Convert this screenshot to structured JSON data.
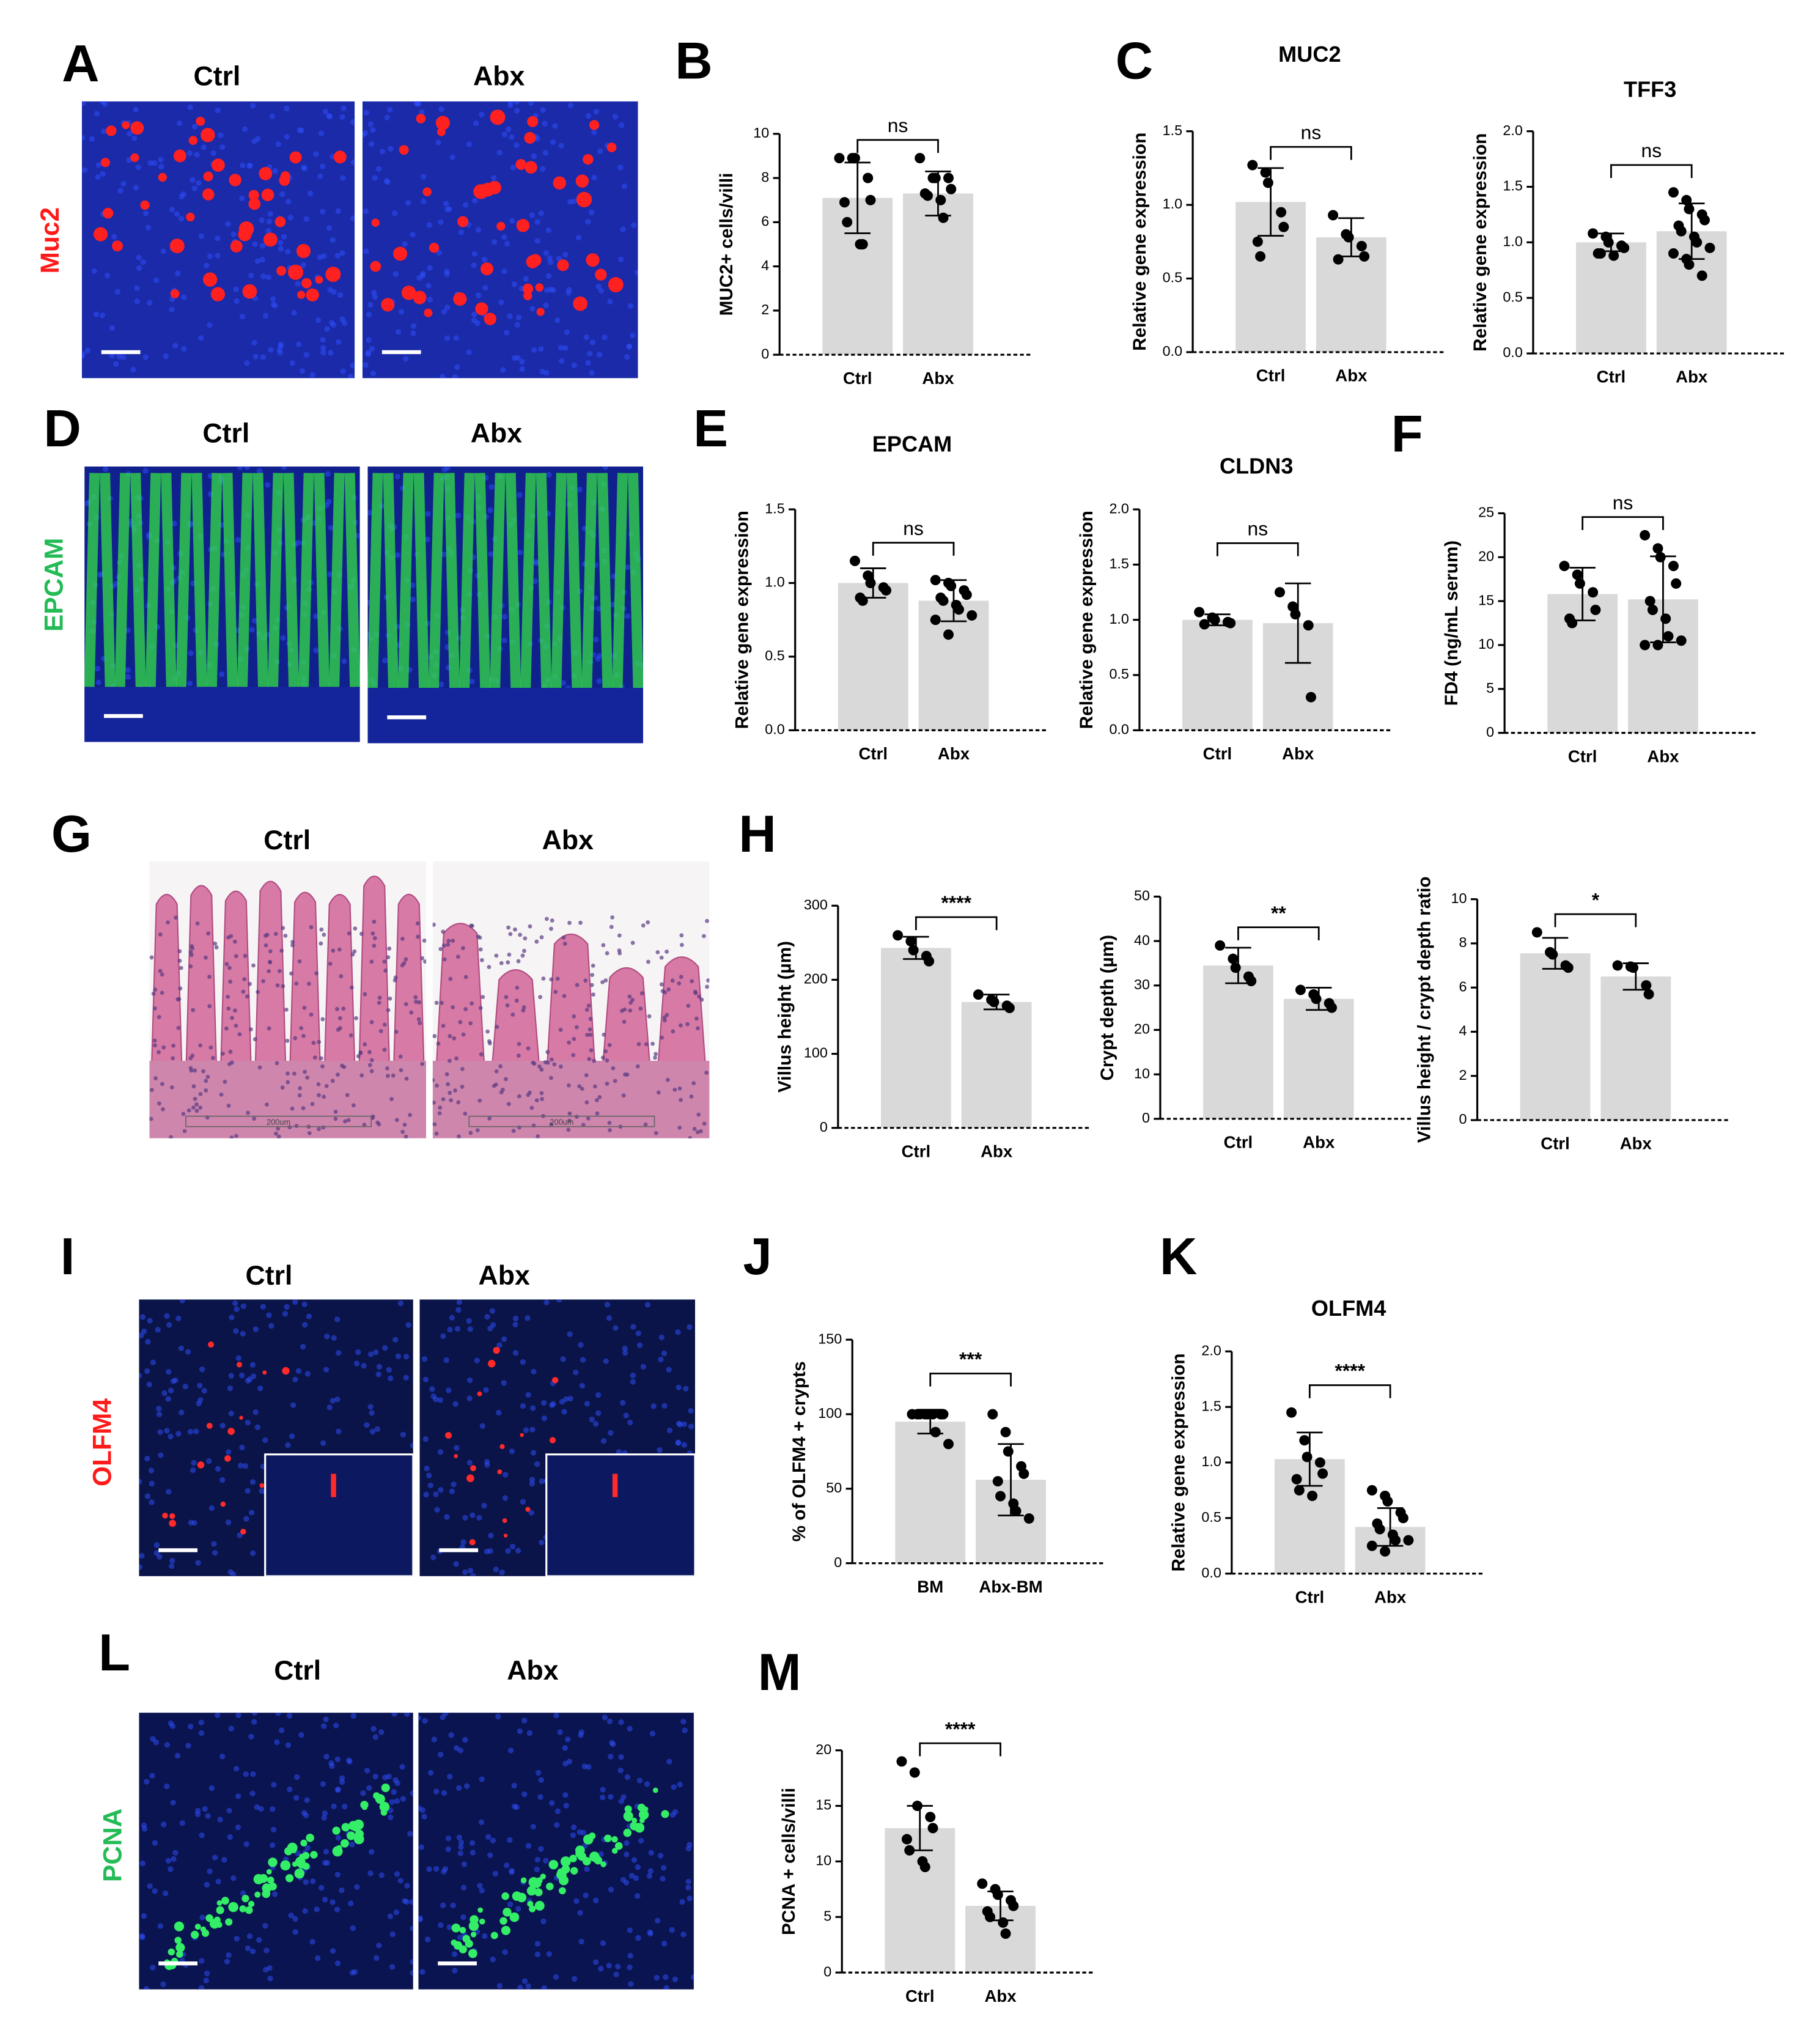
{
  "image_panels": [
    {
      "letter": "A",
      "stain": "Muc2",
      "columns": [
        "Ctrl",
        "Abx"
      ]
    },
    {
      "letter": "D",
      "stain": "EPCAM",
      "columns": [
        "Ctrl",
        "Abx"
      ]
    },
    {
      "letter": "G",
      "columns": [
        "Ctrl",
        "Abx"
      ],
      "scale_labels": [
        "200um",
        "200um"
      ]
    },
    {
      "letter": "I",
      "stain": "OLFM4",
      "columns": [
        "Ctrl",
        "Abx"
      ]
    },
    {
      "letter": "L",
      "stain": "PCNA",
      "columns": [
        "Ctrl",
        "Abx"
      ]
    }
  ],
  "chart_letters": [
    "B",
    "C",
    "E",
    "F",
    "H",
    "J",
    "K",
    "M"
  ],
  "chart_data": [
    {
      "type": "bar",
      "ylabel": "MUC2+ cells/villi",
      "categories": [
        "Ctrl",
        "Abx"
      ],
      "values": [
        7.1,
        7.3
      ],
      "error": [
        1.6,
        1.0
      ],
      "points": [
        [
          8.9,
          8.9,
          8.9,
          8,
          7,
          6.9,
          6,
          5,
          5
        ],
        [
          8.9,
          8,
          8,
          8,
          7.5,
          7.3,
          7.2,
          7,
          6.2
        ]
      ],
      "significance": "ns",
      "ylim": [
        0,
        10
      ],
      "yticks": [
        0,
        2,
        4,
        6,
        8,
        10
      ],
      "color": "#d9d9d9"
    },
    {
      "type": "bar",
      "title": "MUC2",
      "ylabel": "Relative gene expression",
      "categories": [
        "Ctrl",
        "Abx"
      ],
      "values": [
        1.02,
        0.78
      ],
      "error": [
        0.23,
        0.13
      ],
      "points": [
        [
          1.27,
          1.22,
          1.15,
          0.95,
          0.85,
          0.75,
          0.65
        ],
        [
          0.93,
          0.8,
          0.78,
          0.72,
          0.65,
          0.63
        ]
      ],
      "significance": "ns",
      "ylim": [
        0,
        1.5
      ],
      "yticks": [
        {
          "value": 0,
          "label": "0.0"
        },
        0.5,
        {
          "value": 1,
          "label": "1.0"
        },
        1.5
      ],
      "color": "#d9d9d9"
    },
    {
      "type": "bar",
      "title": "TFF3",
      "ylabel": "Relative gene expression",
      "categories": [
        "Ctrl",
        "Abx"
      ],
      "values": [
        1.0,
        1.1
      ],
      "error": [
        0.08,
        0.25
      ],
      "points": [
        [
          1.08,
          1.05,
          1.0,
          0.97,
          0.95,
          0.9,
          0.9,
          0.88
        ],
        [
          1.45,
          1.38,
          1.3,
          1.25,
          1.2,
          1.15,
          1.1,
          1.05,
          1.0,
          0.95,
          0.9,
          0.85,
          0.8,
          0.7
        ]
      ],
      "significance": "ns",
      "ylim": [
        0,
        2
      ],
      "yticks": [
        {
          "value": 0,
          "label": "0.0"
        },
        0.5,
        {
          "value": 1,
          "label": "1.0"
        },
        1.5,
        {
          "value": 2,
          "label": "2.0"
        }
      ],
      "color": "#d9d9d9"
    },
    {
      "type": "bar",
      "title": "EPCAM",
      "ylabel": "Relative gene expression",
      "categories": [
        "Ctrl",
        "Abx"
      ],
      "values": [
        1.0,
        0.88
      ],
      "error": [
        0.1,
        0.14
      ],
      "points": [
        [
          1.15,
          1.05,
          1.0,
          0.97,
          0.95,
          0.9,
          0.88
        ],
        [
          1.02,
          1.0,
          0.98,
          0.95,
          0.92,
          0.9,
          0.88,
          0.85,
          0.82,
          0.78,
          0.75,
          0.65
        ]
      ],
      "significance": "ns",
      "ylim": [
        0,
        1.5
      ],
      "yticks": [
        {
          "value": 0,
          "label": "0.0"
        },
        0.5,
        {
          "value": 1,
          "label": "1.0"
        },
        1.5
      ],
      "color": "#d9d9d9"
    },
    {
      "type": "bar",
      "title": "CLDN3",
      "ylabel": "Relative gene expression",
      "categories": [
        "Ctrl",
        "Abx"
      ],
      "values": [
        1.0,
        0.97
      ],
      "error": [
        0.05,
        0.36
      ],
      "points": [
        [
          1.07,
          1.02,
          1.0,
          0.98,
          0.97,
          0.96
        ],
        [
          1.25,
          1.12,
          1.05,
          0.95,
          0.3
        ]
      ],
      "significance": "ns",
      "ylim": [
        0,
        2
      ],
      "yticks": [
        {
          "value": 0,
          "label": "0.0"
        },
        0.5,
        {
          "value": 1,
          "label": "1.0"
        },
        1.5,
        {
          "value": 2,
          "label": "2.0"
        }
      ],
      "color": "#d9d9d9"
    },
    {
      "type": "bar",
      "ylabel": "FD4 (ng/mL serum)",
      "categories": [
        "Ctrl",
        "Abx"
      ],
      "values": [
        15.8,
        15.2
      ],
      "error": [
        3,
        4.9
      ],
      "points": [
        [
          19,
          18,
          17,
          16,
          14,
          13,
          12.5
        ],
        [
          22.5,
          21,
          20,
          19,
          17,
          15,
          14,
          13,
          11,
          10.5,
          10,
          10
        ]
      ],
      "significance": "ns",
      "ylim": [
        0,
        25
      ],
      "yticks": [
        0,
        5,
        10,
        15,
        20,
        25
      ],
      "color": "#d9d9d9"
    },
    {
      "type": "bar",
      "ylabel": "Villus height (µm)",
      "categories": [
        "Ctrl",
        "Abx"
      ],
      "values": [
        243,
        170
      ],
      "error": [
        15,
        10
      ],
      "points": [
        [
          260,
          252,
          240,
          232,
          225
        ],
        [
          180,
          173,
          170,
          165,
          162
        ]
      ],
      "significance": "****",
      "ylim": [
        0,
        300
      ],
      "yticks": [
        0,
        100,
        200,
        300
      ],
      "color": "#d9d9d9"
    },
    {
      "type": "bar",
      "ylabel": "Crypt depth (µm)",
      "categories": [
        "Ctrl",
        "Abx"
      ],
      "values": [
        34.5,
        27
      ],
      "error": [
        4,
        2.5
      ],
      "points": [
        [
          39,
          36,
          34,
          32,
          31
        ],
        [
          29,
          28,
          27,
          26,
          25
        ]
      ],
      "significance": "**",
      "ylim": [
        0,
        50
      ],
      "yticks": [
        0,
        10,
        20,
        30,
        40,
        50
      ],
      "color": "#d9d9d9"
    },
    {
      "type": "bar",
      "ylabel": "Villus height / crypt depth ratio",
      "categories": [
        "Ctrl",
        "Abx"
      ],
      "values": [
        7.55,
        6.5
      ],
      "error": [
        0.7,
        0.6
      ],
      "points": [
        [
          8.5,
          7.6,
          7.5,
          7.0,
          6.9
        ],
        [
          7.0,
          6.95,
          6.9,
          6.1,
          5.7
        ]
      ],
      "significance": "*",
      "ylim": [
        0,
        10
      ],
      "yticks": [
        0,
        2,
        4,
        6,
        8,
        10
      ],
      "color": "#d9d9d9"
    },
    {
      "type": "bar",
      "ylabel": "% of OLFM4 + crypts",
      "categories": [
        "BM",
        "Abx-BM"
      ],
      "values": [
        95,
        56
      ],
      "error": [
        8,
        24
      ],
      "points": [
        [
          100,
          100,
          100,
          100,
          100,
          100,
          100,
          100,
          88,
          80
        ],
        [
          100,
          88,
          75,
          65,
          60,
          55,
          45,
          40,
          35,
          30
        ]
      ],
      "significance": "***",
      "ylim": [
        0,
        150
      ],
      "yticks": [
        0,
        50,
        100,
        150
      ],
      "color": "#d9d9d9"
    },
    {
      "type": "bar",
      "title": "OLFM4",
      "ylabel": "Relative gene expression",
      "categories": [
        "Ctrl",
        "Abx"
      ],
      "values": [
        1.03,
        0.42
      ],
      "error": [
        0.24,
        0.17
      ],
      "points": [
        [
          1.45,
          1.2,
          1.05,
          1.0,
          0.9,
          0.85,
          0.75,
          0.7
        ],
        [
          0.75,
          0.7,
          0.65,
          0.55,
          0.5,
          0.45,
          0.4,
          0.35,
          0.3,
          0.3,
          0.25,
          0.2
        ]
      ],
      "significance": "****",
      "ylim": [
        0,
        2
      ],
      "yticks": [
        {
          "value": 0,
          "label": "0.0"
        },
        0.5,
        {
          "value": 1,
          "label": "1.0"
        },
        1.5,
        {
          "value": 2,
          "label": "2.0"
        }
      ],
      "color": "#d9d9d9"
    },
    {
      "type": "bar",
      "ylabel": "PCNA + cells/villi",
      "categories": [
        "Ctrl",
        "Abx"
      ],
      "values": [
        13,
        6
      ],
      "error": [
        2,
        1.3
      ],
      "points": [
        [
          19,
          18,
          15,
          14,
          13,
          12,
          11,
          10,
          9.5
        ],
        [
          8,
          7.5,
          7,
          6.5,
          6,
          5.5,
          5,
          4.5,
          3.5
        ]
      ],
      "significance": "****",
      "ylim": [
        0,
        20
      ],
      "yticks": [
        0,
        5,
        10,
        15,
        20
      ],
      "color": "#d9d9d9"
    }
  ]
}
